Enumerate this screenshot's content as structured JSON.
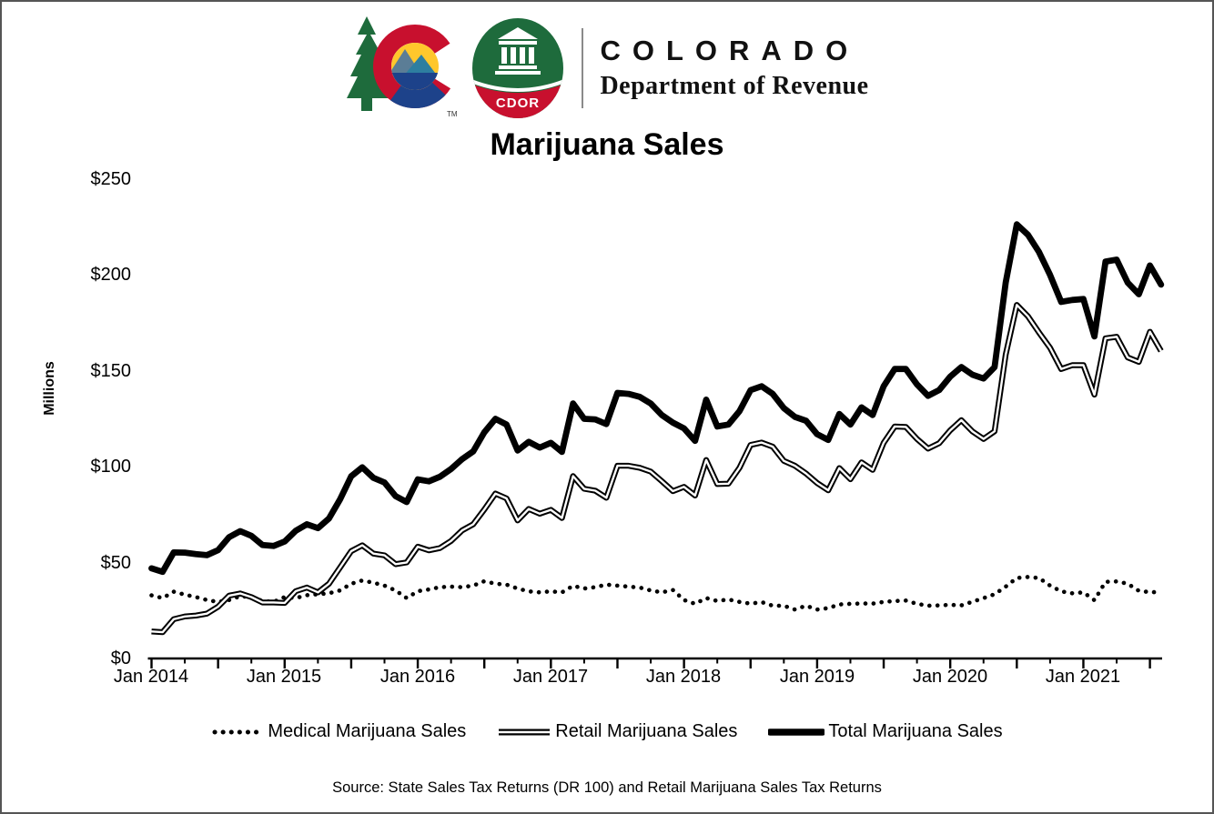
{
  "header": {
    "brand_name": "COLORADO",
    "brand_sub": "Department of Revenue",
    "badge_text": "CDOR",
    "trademark": "TM"
  },
  "title": "Marijuana Sales",
  "y_axis": {
    "label": "Millions",
    "ticks": [
      "$0",
      "$50",
      "$100",
      "$150",
      "$200",
      "$250"
    ]
  },
  "x_axis": {
    "ticks": [
      "Jan 2014",
      "Jan 2015",
      "Jan 2016",
      "Jan 2017",
      "Jan 2018",
      "Jan 2019",
      "Jan 2020",
      "Jan 2021"
    ]
  },
  "legend": {
    "items": [
      {
        "label": "Medical Marijuana Sales",
        "style": "dotted"
      },
      {
        "label": "Retail Marijuana Sales",
        "style": "double-line"
      },
      {
        "label": "Total Marijuana Sales",
        "style": "thick-solid"
      }
    ]
  },
  "source": "Source: State Sales Tax Returns (DR 100) and Retail Marijuana  Sales Tax Returns",
  "chart_data": {
    "type": "line",
    "title": "Marijuana Sales",
    "ylabel": "Millions",
    "unit": "USD millions",
    "frequency": "monthly",
    "x_start": "Jan 2014",
    "x_end": "Aug 2021",
    "ylim": [
      0,
      250
    ],
    "ytick_interval": 50,
    "grid": false,
    "legend_position": "bottom",
    "note": "Total Marijuana Sales = Medical + Retail; values estimated from plotted lines",
    "series": [
      {
        "name": "Medical Marijuana Sales",
        "style": "dotted",
        "color": "#000000",
        "values": [
          32.9,
          31.5,
          34.8,
          33.3,
          32.0,
          30.5,
          29.5,
          30.5,
          32.5,
          32.0,
          30.0,
          29.5,
          32.0,
          31.5,
          33.0,
          33.5,
          34.0,
          35.5,
          39.0,
          40.7,
          39.5,
          38.0,
          35.5,
          31.5,
          35.1,
          36.0,
          37.2,
          37.5,
          37.2,
          38.0,
          40.3,
          39.0,
          38.5,
          36.5,
          35.0,
          34.5,
          35.0,
          34.5,
          37.9,
          36.5,
          37.2,
          38.5,
          38.0,
          37.5,
          37.0,
          35.5,
          34.5,
          35.7,
          30.5,
          28.5,
          31.5,
          30.0,
          30.8,
          29.5,
          28.6,
          29.4,
          27.5,
          27.5,
          25.5,
          27.5,
          25.5,
          26.3,
          28.2,
          28.5,
          28.7,
          28.6,
          29.5,
          30.0,
          30.2,
          28.5,
          27.5,
          27.7,
          28.0,
          27.7,
          29.6,
          31.5,
          33.5,
          37.5,
          42.0,
          42.5,
          42.0,
          38.0,
          35.0,
          34.0,
          34.5,
          30.4,
          40.0,
          40.2,
          39.0,
          35.3,
          34.6,
          34.6
        ]
      },
      {
        "name": "Retail Marijuana Sales",
        "style": "double-line",
        "color": "#000000",
        "values": [
          14.1,
          13.7,
          20.5,
          21.9,
          22.4,
          23.4,
          27.0,
          32.8,
          33.9,
          32.0,
          29.2,
          29.2,
          29.0,
          35.1,
          37.0,
          34.5,
          39.0,
          47.5,
          56.0,
          59.0,
          54.7,
          53.8,
          49.2,
          50.1,
          58.3,
          56.4,
          57.6,
          61.3,
          66.8,
          70.0,
          77.7,
          86.0,
          83.5,
          72.0,
          78.0,
          75.5,
          77.5,
          73.3,
          95.1,
          88.5,
          87.5,
          83.8,
          100.5,
          100.5,
          99.5,
          97.5,
          92.5,
          87.3,
          89.5,
          85.0,
          103.5,
          91.0,
          91.2,
          99.5,
          111.4,
          112.6,
          110.5,
          103.1,
          100.5,
          96.5,
          91.5,
          87.7,
          99.3,
          93.5,
          102.3,
          98.4,
          112.5,
          121.0,
          120.8,
          114.5,
          109.5,
          112.3,
          119.0,
          124.3,
          118.4,
          114.5,
          118.5,
          158.5,
          184.4,
          178.5,
          170.0,
          162.0,
          151.0,
          153.0,
          153.0,
          137.6,
          167.0,
          167.8,
          157.0,
          154.7,
          170.4,
          160.4
        ]
      },
      {
        "name": "Total Marijuana Sales",
        "style": "thick-solid",
        "color": "#000000",
        "values": [
          47.0,
          45.2,
          55.3,
          55.2,
          54.4,
          53.9,
          56.5,
          63.3,
          66.4,
          64.0,
          59.2,
          58.7,
          61.0,
          66.6,
          70.0,
          68.0,
          73.0,
          83.0,
          95.0,
          99.7,
          94.2,
          91.8,
          84.7,
          81.6,
          93.4,
          92.4,
          94.8,
          98.8,
          104.0,
          108.0,
          118.0,
          125.0,
          122.0,
          108.5,
          113.0,
          110.0,
          112.5,
          107.8,
          133.0,
          125.0,
          124.7,
          122.3,
          138.5,
          138.0,
          136.5,
          133.0,
          127.0,
          123.0,
          120.0,
          113.5,
          135.0,
          121.0,
          122.0,
          129.0,
          140.0,
          142.0,
          138.0,
          130.6,
          126.0,
          124.0,
          117.0,
          114.0,
          127.5,
          122.0,
          131.0,
          127.0,
          142.0,
          151.0,
          151.0,
          143.0,
          137.0,
          140.0,
          147.0,
          152.0,
          148.0,
          146.0,
          152.0,
          196.0,
          226.4,
          221.0,
          212.0,
          200.0,
          186.0,
          187.0,
          187.5,
          168.0,
          207.0,
          208.0,
          196.0,
          190.0,
          205.0,
          195.0
        ]
      }
    ]
  },
  "colors": {
    "line": "#000000",
    "logo_green": "#1e6b3c",
    "logo_red": "#c8102e",
    "logo_yellow": "#ffc72c",
    "logo_navy": "#1d428a",
    "logo_teal": "#2e7ea0"
  }
}
